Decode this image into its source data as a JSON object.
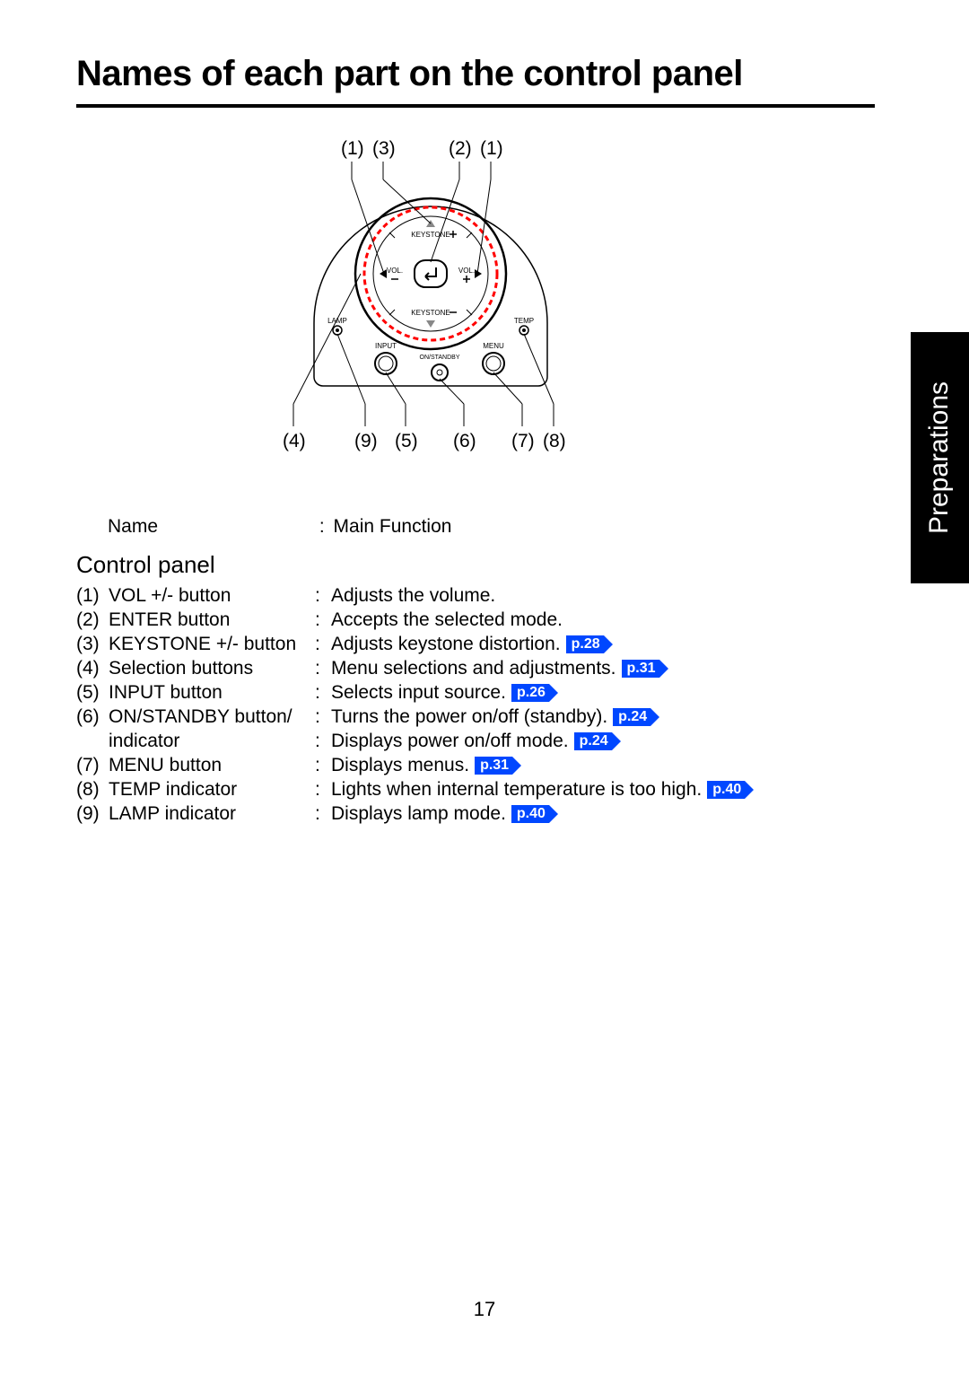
{
  "title": "Names of each part on the control panel",
  "side_tab": "Preparations",
  "page_number": "17",
  "header": {
    "name": "Name",
    "sep": ":",
    "func": "Main Function"
  },
  "subheading": "Control panel",
  "colors": {
    "page_ref_bg": "#0047ff",
    "page_ref_fg": "#ffffff",
    "ring_red": "#ff0000",
    "black": "#000000",
    "white": "#ffffff"
  },
  "diagram": {
    "top_callouts": [
      "(1)",
      "(3)",
      "(2)",
      "(1)"
    ],
    "bottom_callouts": [
      "(4)",
      "(9)",
      "(5)",
      "(6)",
      "(7)",
      "(8)"
    ],
    "labels": {
      "keystone_plus": "KEYSTONE",
      "keystone_minus": "KEYSTONE",
      "vol_l": "VOL.",
      "vol_r": "VOL.",
      "lamp": "LAMP",
      "temp": "TEMP",
      "input": "INPUT",
      "menu": "MENU",
      "onstandby": "ON/STANDBY"
    }
  },
  "items": [
    {
      "num": "(1)",
      "name": "VOL +/- button",
      "func": "Adjusts the volume.",
      "ref": null
    },
    {
      "num": "(2)",
      "name": "ENTER button",
      "func": "Accepts the selected mode.",
      "ref": null
    },
    {
      "num": "(3)",
      "name": "KEYSTONE +/- button",
      "func": "Adjusts keystone distortion.",
      "ref": "p.28"
    },
    {
      "num": "(4)",
      "name": "Selection buttons",
      "func": "Menu selections and adjustments.",
      "ref": "p.31"
    },
    {
      "num": "(5)",
      "name": "INPUT button",
      "func": "Selects input source.",
      "ref": "p.26"
    },
    {
      "num": "(6)",
      "name": "ON/STANDBY button/",
      "func": "Turns the power on/off (standby).",
      "ref": "p.24"
    },
    {
      "num": "",
      "name": "indicator",
      "func": "Displays power on/off mode.",
      "ref": "p.24"
    },
    {
      "num": "(7)",
      "name": "MENU button",
      "func": "Displays menus.",
      "ref": "p.31"
    },
    {
      "num": "(8)",
      "name": "TEMP indicator",
      "func": "Lights when internal temperature is too high.",
      "ref": "p.40"
    },
    {
      "num": "(9)",
      "name": "LAMP indicator",
      "func": "Displays lamp mode.",
      "ref": "p.40"
    }
  ]
}
